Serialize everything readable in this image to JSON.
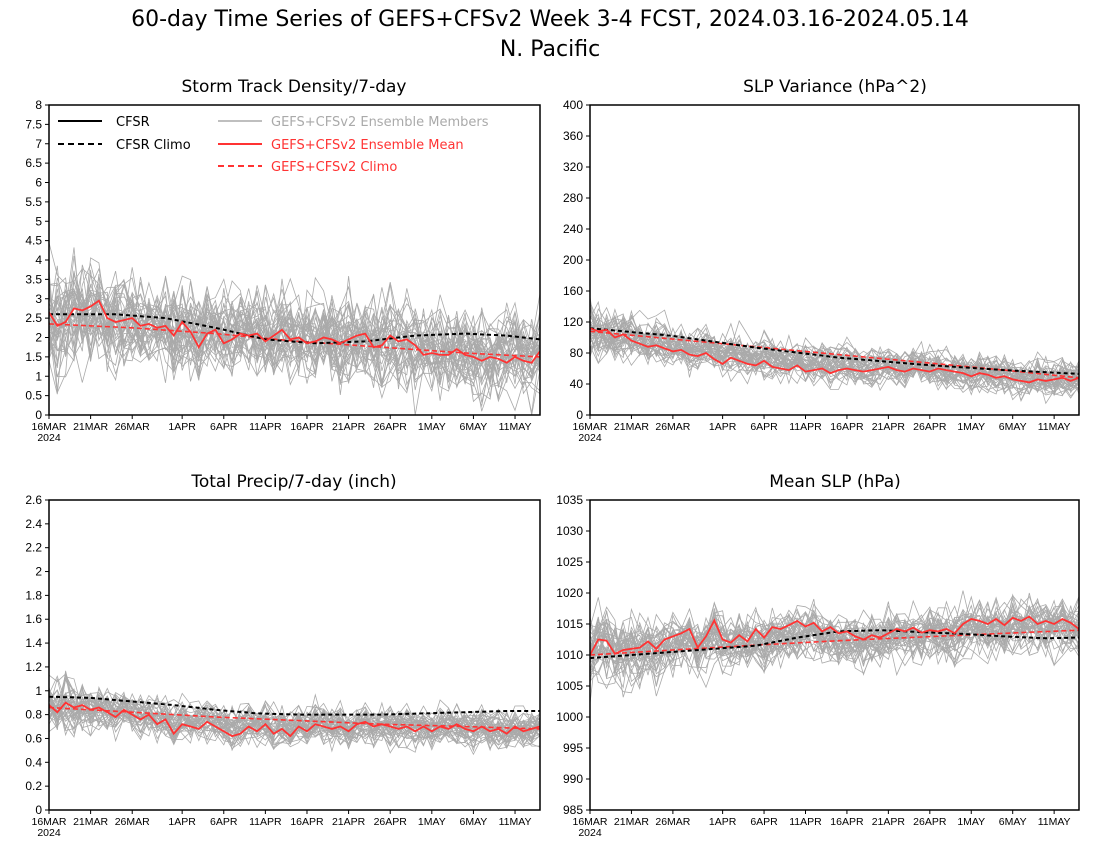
{
  "figure": {
    "title_line1": "60-day Time Series of GEFS+CFSv2 Week 3-4 FCST, 2024.03.16-2024.05.14",
    "title_line2": "N. Pacific"
  },
  "legend": {
    "cfsr": "CFSR",
    "cfsr_climo": "CFSR Climo",
    "members": "GEFS+CFSv2 Ensemble Members",
    "ens_mean": "GEFS+CFSv2 Ensemble Mean",
    "gefs_climo": "GEFS+CFSv2 Climo"
  },
  "colors": {
    "members": "#aaaaaa",
    "ens_mean": "#ff3333",
    "gefs_climo": "#ff3333",
    "cfsr": "#000000",
    "cfsr_climo": "#000000"
  },
  "x_axis": {
    "ticks": [
      "16MAR",
      "21MAR",
      "26MAR",
      "1APR",
      "6APR",
      "11APR",
      "16APR",
      "21APR",
      "26APR",
      "1MAY",
      "6MAY",
      "11MAY"
    ],
    "tick_days": [
      0,
      5,
      10,
      16,
      21,
      26,
      31,
      36,
      41,
      46,
      51,
      56
    ],
    "year_label": "2024",
    "n_days": 60
  },
  "ensemble": {
    "n_members": 40
  },
  "chart_data": [
    {
      "type": "line",
      "title": "Storm Track Density/7-day",
      "ylim": [
        0,
        8
      ],
      "yticks": [
        "0",
        "0.5",
        "1",
        "1.5",
        "2",
        "2.5",
        "3",
        "3.5",
        "4",
        "4.5",
        "5",
        "5.5",
        "6",
        "6.5",
        "7",
        "7.5",
        "8"
      ],
      "member_spread": 0.85,
      "legend": true,
      "series": [
        {
          "name": "CFSR Climo",
          "style": "dash-black",
          "x": [
            0,
            8,
            14,
            20,
            26,
            32,
            38,
            44,
            50,
            55,
            59
          ],
          "y": [
            2.6,
            2.6,
            2.5,
            2.25,
            1.95,
            1.85,
            1.9,
            2.05,
            2.1,
            2.05,
            1.95
          ]
        },
        {
          "name": "GEFS+CFSv2 Climo",
          "style": "dash-red",
          "x": [
            0,
            10,
            20,
            30,
            40,
            50,
            59
          ],
          "y": [
            2.35,
            2.25,
            2.1,
            1.9,
            1.75,
            1.6,
            1.5
          ]
        },
        {
          "name": "GEFS+CFSv2 Ensemble Mean",
          "style": "solid-red",
          "x": [
            0,
            1,
            2,
            3,
            4,
            5,
            6,
            7,
            8,
            9,
            10,
            11,
            12,
            13,
            14,
            15,
            16,
            17,
            18,
            19,
            20,
            21,
            22,
            23,
            24,
            25,
            26,
            27,
            28,
            29,
            30,
            31,
            32,
            33,
            34,
            35,
            36,
            37,
            38,
            39,
            40,
            41,
            42,
            43,
            44,
            45,
            46,
            47,
            48,
            49,
            50,
            51,
            52,
            53,
            54,
            55,
            56,
            57,
            58,
            59
          ],
          "y": [
            2.65,
            2.3,
            2.4,
            2.75,
            2.7,
            2.8,
            2.95,
            2.5,
            2.4,
            2.45,
            2.5,
            2.3,
            2.35,
            2.25,
            2.3,
            2.05,
            2.4,
            2.15,
            1.75,
            2.1,
            2.2,
            1.85,
            1.95,
            2.1,
            2.05,
            2.1,
            1.9,
            2.05,
            2.2,
            1.95,
            2.0,
            1.85,
            1.9,
            2.0,
            1.95,
            1.85,
            1.95,
            2.05,
            2.1,
            1.75,
            1.8,
            2.05,
            1.9,
            1.95,
            1.8,
            1.55,
            1.6,
            1.55,
            1.55,
            1.7,
            1.55,
            1.5,
            1.4,
            1.5,
            1.45,
            1.35,
            1.5,
            1.4,
            1.35,
            1.65
          ]
        }
      ]
    },
    {
      "type": "line",
      "title": "SLP Variance (hPa^2)",
      "ylim": [
        0,
        400
      ],
      "yticks": [
        "0",
        "40",
        "80",
        "120",
        "160",
        "200",
        "240",
        "280",
        "320",
        "360",
        "400"
      ],
      "member_spread": 18,
      "legend": false,
      "series": [
        {
          "name": "CFSR Climo",
          "style": "dash-black",
          "x": [
            0,
            10,
            20,
            30,
            40,
            50,
            59
          ],
          "y": [
            112,
            102,
            87,
            74,
            65,
            58,
            53
          ]
        },
        {
          "name": "GEFS+CFSv2 Climo",
          "style": "dash-red",
          "x": [
            0,
            10,
            20,
            30,
            40,
            50,
            59
          ],
          "y": [
            108,
            98,
            88,
            78,
            68,
            58,
            48
          ]
        },
        {
          "name": "GEFS+CFSv2 Ensemble Mean",
          "style": "solid-red",
          "x": [
            0,
            1,
            2,
            3,
            4,
            5,
            6,
            7,
            8,
            9,
            10,
            11,
            12,
            13,
            14,
            15,
            16,
            17,
            18,
            19,
            20,
            21,
            22,
            23,
            24,
            25,
            26,
            27,
            28,
            29,
            30,
            31,
            32,
            33,
            34,
            35,
            36,
            37,
            38,
            39,
            40,
            41,
            42,
            43,
            44,
            45,
            46,
            47,
            48,
            49,
            50,
            51,
            52,
            53,
            54,
            55,
            56,
            57,
            58,
            59
          ],
          "y": [
            112,
            108,
            110,
            100,
            104,
            96,
            92,
            88,
            90,
            86,
            82,
            84,
            78,
            76,
            80,
            72,
            66,
            74,
            70,
            66,
            64,
            70,
            62,
            60,
            58,
            64,
            56,
            58,
            60,
            54,
            58,
            60,
            58,
            56,
            58,
            60,
            62,
            58,
            56,
            60,
            58,
            56,
            60,
            58,
            56,
            54,
            50,
            54,
            52,
            48,
            50,
            46,
            44,
            42,
            46,
            44,
            46,
            48,
            44,
            48
          ]
        }
      ]
    },
    {
      "type": "line",
      "title": "Total Precip/7-day (inch)",
      "ylim": [
        0,
        2.6
      ],
      "yticks": [
        "0",
        "0.2",
        "0.4",
        "0.6",
        "0.8",
        "1",
        "1.2",
        "1.4",
        "1.6",
        "1.8",
        "2",
        "2.2",
        "2.4",
        "2.6"
      ],
      "member_spread": 0.12,
      "legend": false,
      "series": [
        {
          "name": "CFSR Climo",
          "style": "dash-black",
          "x": [
            0,
            5,
            10,
            15,
            20,
            25,
            30,
            35,
            40,
            45,
            50,
            55,
            59
          ],
          "y": [
            0.95,
            0.94,
            0.91,
            0.88,
            0.84,
            0.81,
            0.8,
            0.8,
            0.8,
            0.81,
            0.82,
            0.83,
            0.83
          ]
        },
        {
          "name": "GEFS+CFSv2 Climo",
          "style": "dash-red",
          "x": [
            0,
            10,
            20,
            30,
            40,
            50,
            59
          ],
          "y": [
            0.86,
            0.82,
            0.78,
            0.75,
            0.72,
            0.7,
            0.68
          ]
        },
        {
          "name": "GEFS+CFSv2 Ensemble Mean",
          "style": "solid-red",
          "x": [
            0,
            1,
            2,
            3,
            4,
            5,
            6,
            7,
            8,
            9,
            10,
            11,
            12,
            13,
            14,
            15,
            16,
            17,
            18,
            19,
            20,
            21,
            22,
            23,
            24,
            25,
            26,
            27,
            28,
            29,
            30,
            31,
            32,
            33,
            34,
            35,
            36,
            37,
            38,
            39,
            40,
            41,
            42,
            43,
            44,
            45,
            46,
            47,
            48,
            49,
            50,
            51,
            52,
            53,
            54,
            55,
            56,
            57,
            58,
            59
          ],
          "y": [
            0.88,
            0.82,
            0.9,
            0.86,
            0.88,
            0.84,
            0.86,
            0.82,
            0.78,
            0.84,
            0.8,
            0.76,
            0.8,
            0.72,
            0.76,
            0.64,
            0.72,
            0.7,
            0.68,
            0.74,
            0.7,
            0.66,
            0.62,
            0.64,
            0.7,
            0.66,
            0.72,
            0.64,
            0.68,
            0.62,
            0.7,
            0.66,
            0.72,
            0.7,
            0.68,
            0.7,
            0.66,
            0.72,
            0.74,
            0.7,
            0.72,
            0.7,
            0.68,
            0.7,
            0.66,
            0.7,
            0.66,
            0.7,
            0.68,
            0.72,
            0.68,
            0.66,
            0.7,
            0.66,
            0.68,
            0.64,
            0.7,
            0.66,
            0.68,
            0.7
          ]
        }
      ]
    },
    {
      "type": "line",
      "title": "Mean SLP (hPa)",
      "ylim": [
        985,
        1035
      ],
      "yticks": [
        "985",
        "990",
        "995",
        "1000",
        "1005",
        "1010",
        "1015",
        "1020",
        "1025",
        "1030",
        "1035"
      ],
      "member_spread": 3.2,
      "legend": false,
      "series": [
        {
          "name": "CFSR Climo",
          "style": "dash-black",
          "x": [
            0,
            10,
            20,
            25,
            30,
            35,
            40,
            45,
            50,
            55,
            59
          ],
          "y": [
            1009.5,
            1010.5,
            1011.5,
            1012.8,
            1013.8,
            1014.0,
            1013.7,
            1013.4,
            1013.0,
            1012.7,
            1012.8
          ]
        },
        {
          "name": "GEFS+CFSv2 Climo",
          "style": "dash-red",
          "x": [
            0,
            10,
            20,
            30,
            40,
            50,
            59
          ],
          "y": [
            1010.0,
            1010.8,
            1011.6,
            1012.3,
            1012.9,
            1013.5,
            1014.0
          ]
        },
        {
          "name": "GEFS+CFSv2 Ensemble Mean",
          "style": "solid-red",
          "x": [
            0,
            1,
            2,
            3,
            4,
            5,
            6,
            7,
            8,
            9,
            10,
            11,
            12,
            13,
            14,
            15,
            16,
            17,
            18,
            19,
            20,
            21,
            22,
            23,
            24,
            25,
            26,
            27,
            28,
            29,
            30,
            31,
            32,
            33,
            34,
            35,
            36,
            37,
            38,
            39,
            40,
            41,
            42,
            43,
            44,
            45,
            46,
            47,
            48,
            49,
            50,
            51,
            52,
            53,
            54,
            55,
            56,
            57,
            58,
            59
          ],
          "y": [
            1010.0,
            1012.5,
            1012.3,
            1010.2,
            1010.8,
            1011.0,
            1011.2,
            1012.2,
            1011.0,
            1012.5,
            1013.0,
            1013.5,
            1014.2,
            1011.2,
            1013.0,
            1015.6,
            1012.5,
            1012.0,
            1013.2,
            1012.2,
            1014.2,
            1012.8,
            1014.5,
            1014.2,
            1014.8,
            1015.5,
            1014.6,
            1015.2,
            1013.8,
            1014.5,
            1013.5,
            1013.8,
            1013.0,
            1012.5,
            1013.2,
            1012.8,
            1013.5,
            1014.2,
            1013.8,
            1014.4,
            1013.6,
            1014.0,
            1013.8,
            1014.2,
            1013.5,
            1015.0,
            1015.8,
            1015.5,
            1015.0,
            1015.8,
            1014.8,
            1016.0,
            1015.5,
            1016.2,
            1015.0,
            1015.5,
            1015.0,
            1015.8,
            1015.2,
            1014.2
          ]
        }
      ]
    }
  ]
}
